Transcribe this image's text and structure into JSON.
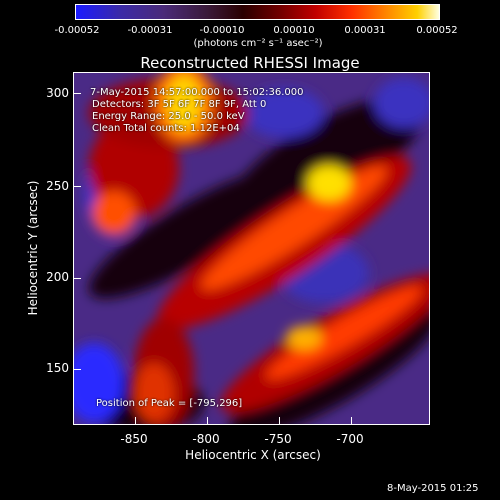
{
  "colorbar": {
    "ticks": [
      "-0.00052",
      "-0.00031",
      "-0.00010",
      "0.00010",
      "0.00031",
      "0.00052"
    ],
    "units": "(photons cm⁻² s⁻¹ asec⁻²)"
  },
  "plot": {
    "title": "Reconstructed RHESSI Image",
    "info_lines": [
      "7-May-2015 14:57:00.000 to 15:02:36.000",
      "Detectors: 3F 5F 6F 7F 8F 9F, Att 0",
      "Energy Range: 25.0 - 50.0 keV",
      "Clean    Total counts: 1.12E+04"
    ],
    "peak_label": "Position of Peak = [-795,296]",
    "xlabel": "Heliocentric X (arcsec)",
    "ylabel": "Heliocentric Y (arcsec)",
    "xticks": [
      "-850",
      "-800",
      "-750",
      "-700"
    ],
    "yticks": [
      "300",
      "250",
      "200",
      "150"
    ]
  },
  "footer": {
    "date": "8-May-2015 01:25"
  },
  "colors": {
    "background": "#000000",
    "blue": "#1a1aff",
    "purple": "#4a2a7a",
    "red": "#c00000",
    "orange": "#ff8a00",
    "yellow": "#ffd000"
  }
}
